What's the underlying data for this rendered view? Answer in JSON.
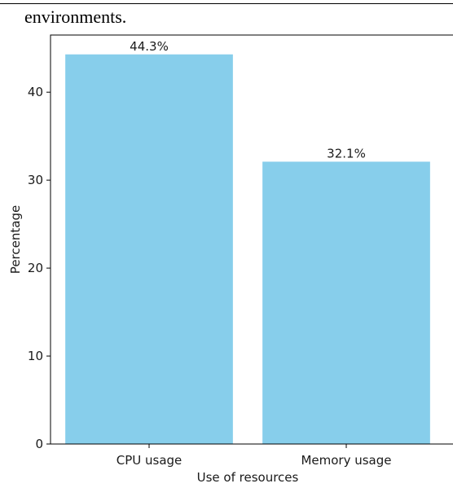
{
  "caption": "environments.",
  "chart_data": {
    "type": "bar",
    "categories": [
      "CPU usage",
      "Memory usage"
    ],
    "values": [
      44.3,
      32.1
    ],
    "data_labels": [
      "44.3%",
      "32.1%"
    ],
    "title": "",
    "xlabel": "Use of resources",
    "ylabel": "Percentage",
    "ylim": [
      0,
      46.5
    ],
    "yticks": [
      0,
      10,
      20,
      30,
      40
    ],
    "bar_color": "#87ceeb",
    "grid": false
  }
}
